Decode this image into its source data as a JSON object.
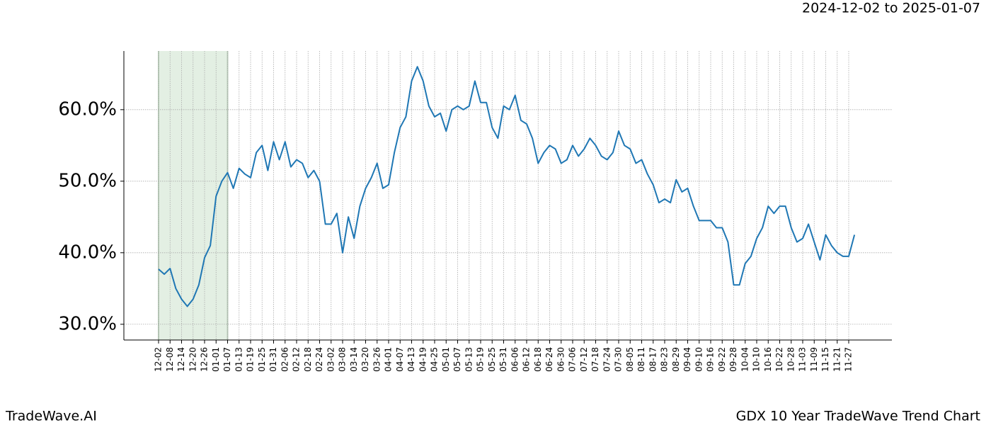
{
  "header": {
    "date_range": "2024-12-02 to 2025-01-07"
  },
  "footer": {
    "left": "TradeWave.AI",
    "right": "GDX 10 Year TradeWave Trend Chart"
  },
  "chart_data": {
    "type": "line",
    "grid": true,
    "highlight": {
      "from": "12-02",
      "to": "01-07",
      "color": "#e3efe3"
    },
    "categories": [
      "12-02",
      null,
      "12-08",
      null,
      "12-14",
      null,
      "12-20",
      null,
      "12-26",
      null,
      "01-01",
      null,
      "01-07",
      null,
      "01-13",
      null,
      "01-19",
      null,
      "01-25",
      null,
      "01-31",
      null,
      "02-06",
      null,
      "02-12",
      null,
      "02-18",
      null,
      "02-24",
      null,
      "03-02",
      null,
      "03-08",
      null,
      "03-14",
      null,
      "03-20",
      null,
      "03-26",
      null,
      "04-01",
      null,
      "04-07",
      null,
      "04-13",
      null,
      "04-19",
      null,
      "04-25",
      null,
      "05-01",
      null,
      "05-07",
      null,
      "05-13",
      null,
      "05-19",
      null,
      "05-25",
      null,
      "05-31",
      null,
      "06-06",
      null,
      "06-12",
      null,
      "06-18",
      null,
      "06-24",
      null,
      "06-30",
      null,
      "07-06",
      null,
      "07-12",
      null,
      "07-18",
      null,
      "07-24",
      null,
      "07-30",
      null,
      "08-05",
      null,
      "08-11",
      null,
      "08-17",
      null,
      "08-23",
      null,
      "08-29",
      null,
      "09-04",
      null,
      "09-10",
      null,
      "09-16",
      null,
      "09-22",
      null,
      "09-28",
      null,
      "10-04",
      null,
      "10-10",
      null,
      "10-16",
      null,
      "10-22",
      null,
      "10-28",
      null,
      "11-03",
      null,
      "11-09",
      null,
      "11-15",
      null,
      "11-21",
      null,
      "11-27",
      null
    ],
    "series": [
      {
        "color": "#1f77b4",
        "values": [
          37.7,
          37.0,
          37.8,
          35,
          33.5,
          32.5,
          33.5,
          35.5,
          39.3,
          41,
          47.9,
          50,
          51.2,
          49,
          51.8,
          51,
          50.5,
          54,
          55,
          51.5,
          55.5,
          53,
          55.5,
          52,
          53,
          52.5,
          50.5,
          51.5,
          50,
          44,
          44,
          45.5,
          40,
          45,
          42,
          46.5,
          49,
          50.5,
          52.5,
          49,
          49.5,
          54,
          57.5,
          59,
          64,
          66,
          64,
          60.5,
          59,
          59.5,
          57,
          60,
          60.5,
          60,
          60.5,
          64,
          61,
          61,
          57.5,
          56,
          60.5,
          60,
          62,
          58.5,
          58,
          56,
          52.5,
          54,
          55,
          54.5,
          52.5,
          53,
          55,
          53.5,
          54.5,
          56,
          55,
          53.5,
          53,
          54,
          57,
          55,
          54.5,
          52.5,
          53,
          51,
          49.5,
          47,
          47.5,
          47,
          50.2,
          48.5,
          49,
          46.5,
          44.5,
          44.5,
          44.5,
          43.5,
          43.5,
          41.5,
          35.5,
          35.5,
          38.5,
          39.5,
          42,
          43.5,
          46.5,
          45.5,
          46.5,
          46.5,
          43.5,
          41.5,
          42,
          44,
          41.5,
          39,
          42.5,
          41,
          40,
          39.5,
          39.5,
          42.5
        ]
      }
    ],
    "ylim": [
      27.8,
      68.2
    ],
    "yticks": [
      {
        "value": 30,
        "label": "30.0%"
      },
      {
        "value": 40,
        "label": "40.0%"
      },
      {
        "value": 50,
        "label": "50.0%"
      },
      {
        "value": 60,
        "label": "60.0%"
      }
    ]
  }
}
